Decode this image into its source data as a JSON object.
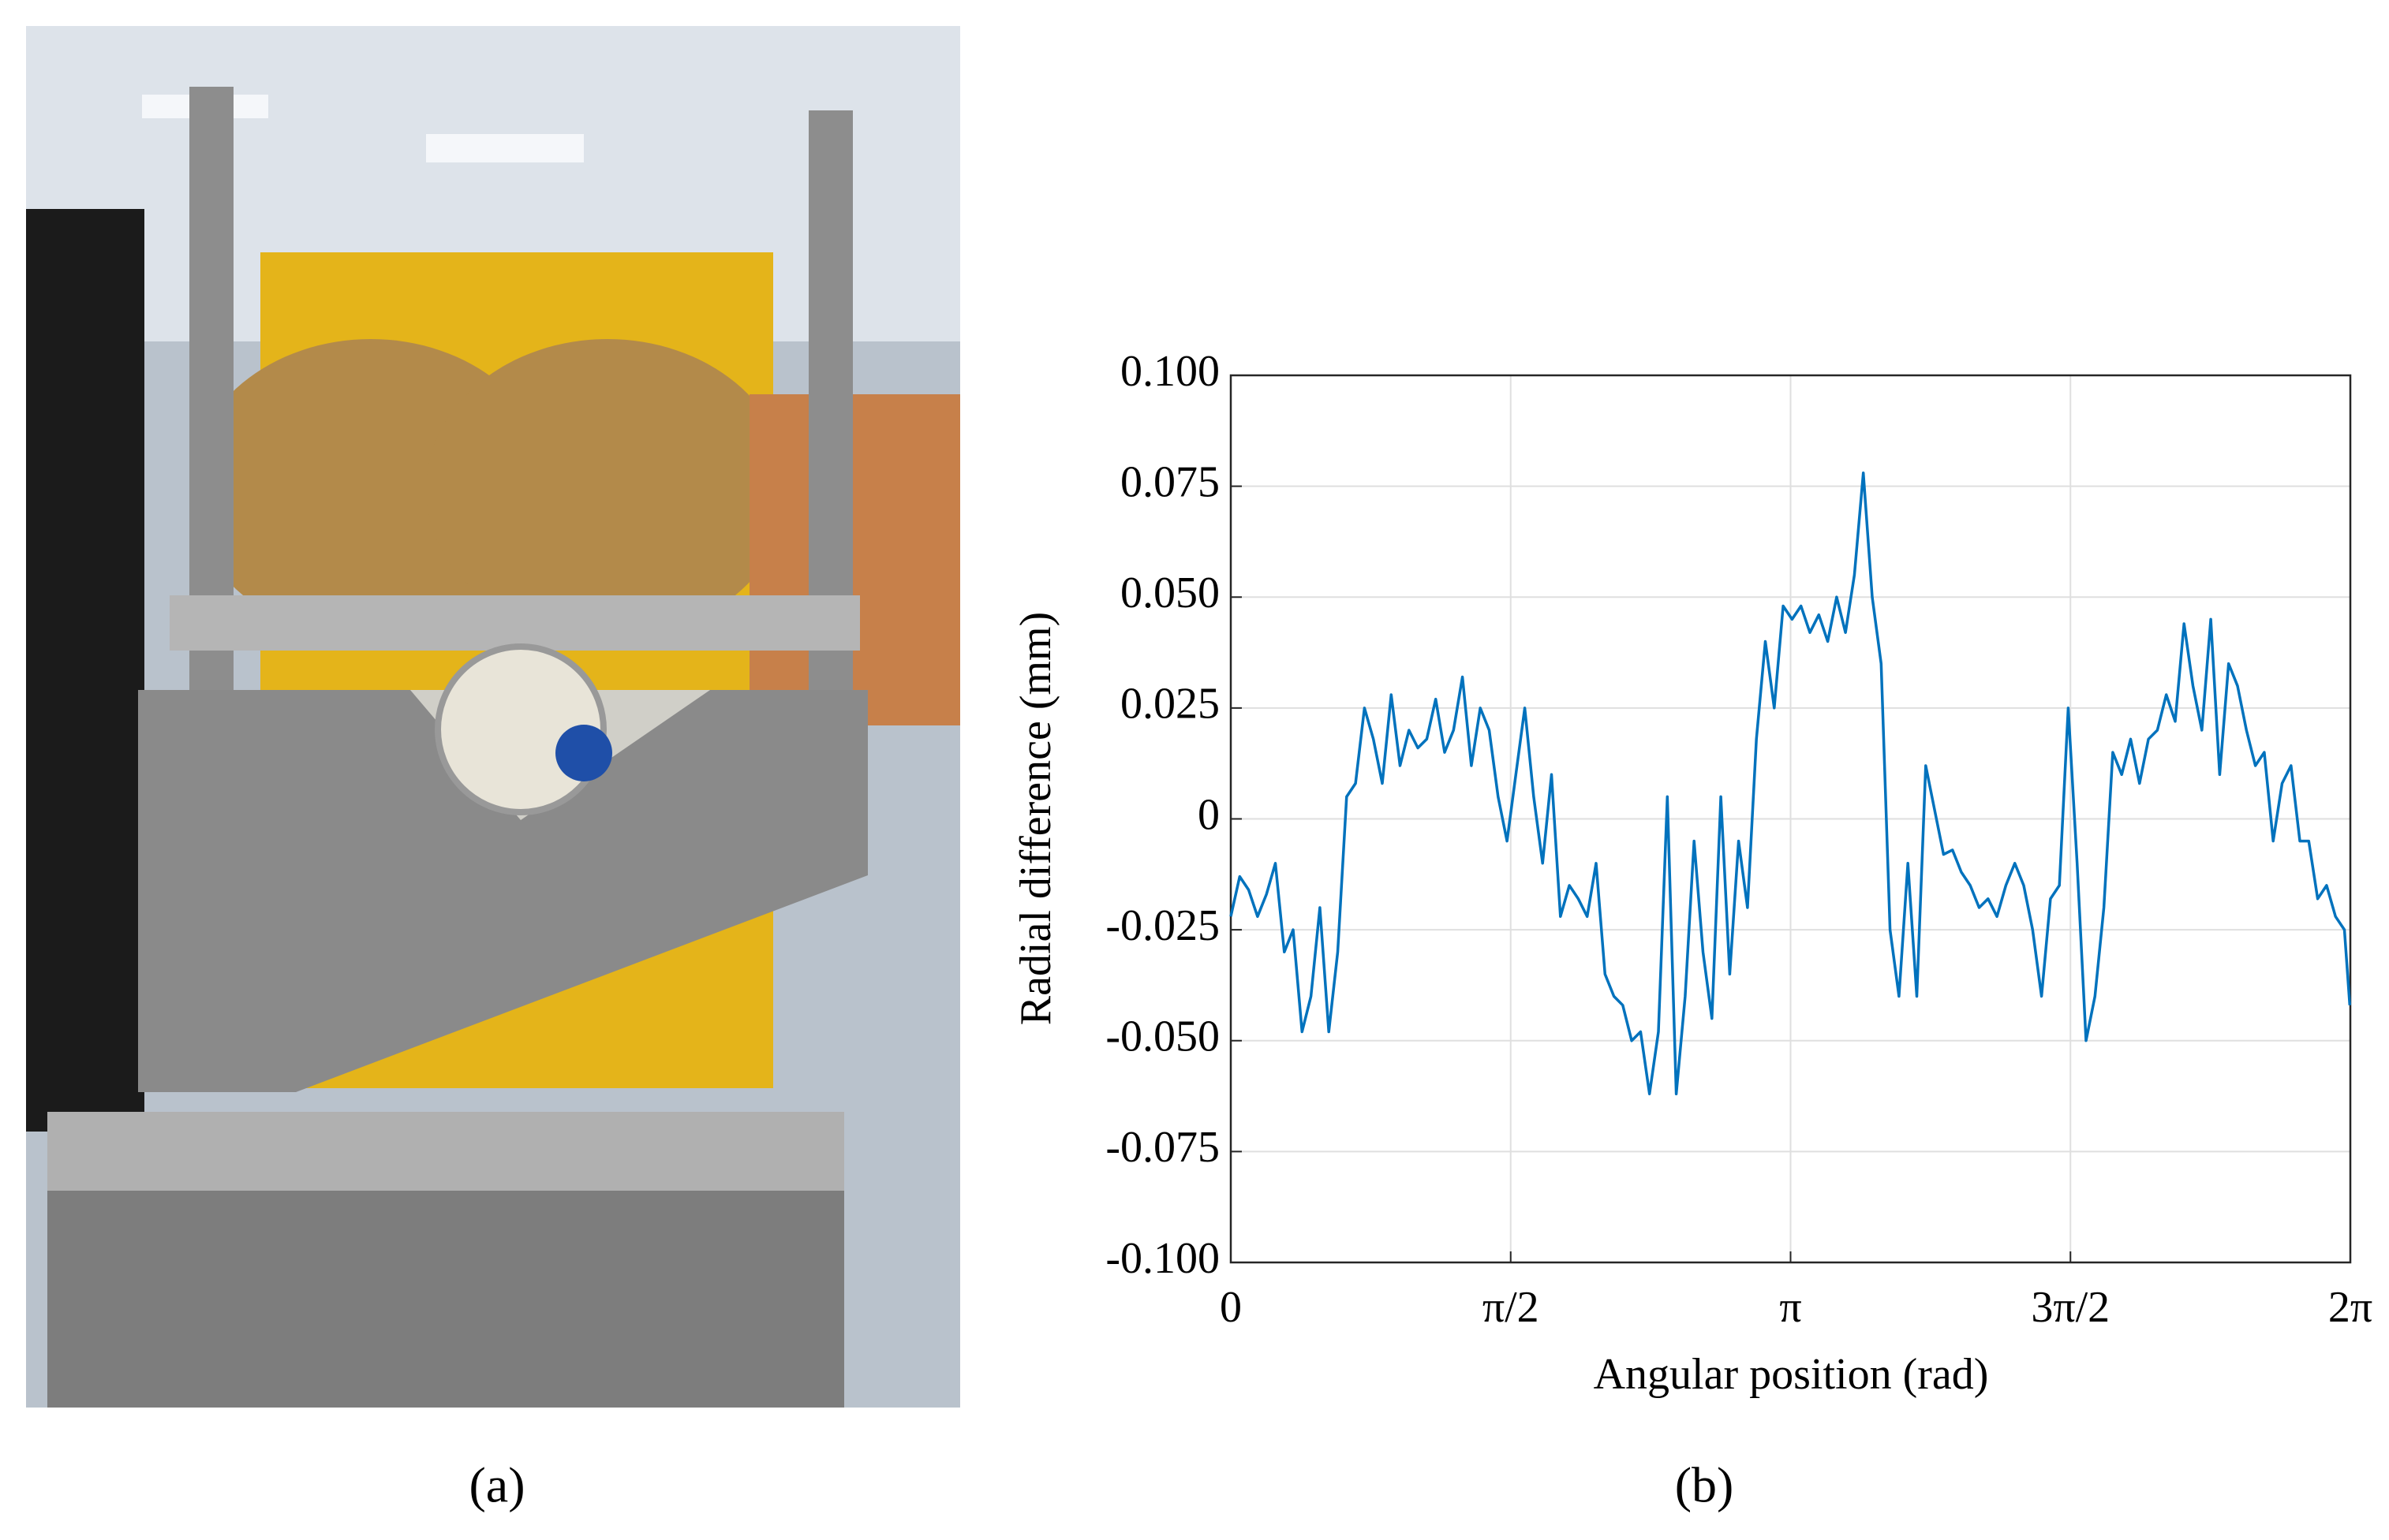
{
  "captions": [
    "(a)",
    "(b)"
  ],
  "chart_data": {
    "type": "line",
    "xlabel": "Angular position (rad)",
    "ylabel": "Radial difference (mm)",
    "x": [
      0,
      0.05,
      0.1,
      0.15,
      0.2,
      0.25,
      0.3,
      0.35,
      0.4,
      0.45,
      0.5,
      0.55,
      0.6,
      0.65,
      0.7,
      0.75,
      0.8,
      0.85,
      0.9,
      0.95,
      1.0,
      1.05,
      1.1,
      1.15,
      1.2,
      1.25,
      1.3,
      1.35,
      1.4,
      1.45,
      1.5,
      1.55,
      1.6,
      1.65,
      1.7,
      1.75,
      1.8,
      1.85,
      1.9,
      1.95,
      2.0,
      2.05,
      2.1,
      2.15,
      2.2,
      2.25,
      2.3,
      2.35,
      2.4,
      2.45,
      2.5,
      2.55,
      2.6,
      2.65,
      2.7,
      2.75,
      2.8,
      2.85,
      2.9,
      2.95,
      3.0,
      3.05,
      3.1,
      3.15,
      3.2,
      3.25,
      3.3,
      3.35,
      3.4,
      3.45,
      3.5,
      3.55,
      3.6,
      3.65,
      3.7,
      3.75,
      3.8,
      3.85,
      3.9,
      3.95,
      4.0,
      4.05,
      4.1,
      4.15,
      4.2,
      4.25,
      4.3,
      4.35,
      4.4,
      4.45,
      4.5,
      4.55,
      4.6,
      4.65,
      4.7,
      4.75,
      4.8,
      4.85,
      4.9,
      4.95,
      5.0,
      5.05,
      5.1,
      5.15,
      5.2,
      5.25,
      5.3,
      5.35,
      5.4,
      5.45,
      5.5,
      5.55,
      5.6,
      5.65,
      5.7,
      5.75,
      5.8,
      5.85,
      5.9,
      5.95,
      6.0,
      6.05,
      6.1,
      6.15,
      6.2,
      6.25,
      6.28
    ],
    "values": [
      -0.022,
      -0.013,
      -0.016,
      -0.022,
      -0.017,
      -0.01,
      -0.03,
      -0.025,
      -0.048,
      -0.04,
      -0.02,
      -0.048,
      -0.03,
      0.005,
      0.008,
      0.025,
      0.018,
      0.008,
      0.028,
      0.012,
      0.02,
      0.016,
      0.018,
      0.027,
      0.015,
      0.02,
      0.032,
      0.012,
      0.025,
      0.02,
      0.005,
      -0.005,
      0.01,
      0.025,
      0.005,
      -0.01,
      0.01,
      -0.022,
      -0.015,
      -0.018,
      -0.022,
      -0.01,
      -0.035,
      -0.04,
      -0.042,
      -0.05,
      -0.048,
      -0.062,
      -0.048,
      0.005,
      -0.062,
      -0.04,
      -0.005,
      -0.03,
      -0.045,
      0.005,
      -0.035,
      -0.005,
      -0.02,
      0.018,
      0.04,
      0.025,
      0.048,
      0.045,
      0.048,
      0.042,
      0.046,
      0.04,
      0.05,
      0.042,
      0.055,
      0.078,
      0.05,
      0.035,
      -0.025,
      -0.04,
      -0.01,
      -0.04,
      0.012,
      0.002,
      -0.008,
      -0.007,
      -0.012,
      -0.015,
      -0.02,
      -0.018,
      -0.022,
      -0.015,
      -0.01,
      -0.015,
      -0.025,
      -0.04,
      -0.018,
      -0.015,
      0.025,
      -0.01,
      -0.05,
      -0.04,
      -0.02,
      0.015,
      0.01,
      0.018,
      0.008,
      0.018,
      0.02,
      0.028,
      0.022,
      0.044,
      0.03,
      0.02,
      0.045,
      0.01,
      0.035,
      0.03,
      0.02,
      0.012,
      0.015,
      -0.005,
      0.008,
      0.012,
      -0.005,
      -0.005,
      -0.018,
      -0.015,
      -0.022,
      -0.025,
      -0.042
    ],
    "color": "#0072bd",
    "xlim": [
      0,
      6.2832
    ],
    "xticks": [
      0,
      {
        "value": 1.5708,
        "label": "π/2"
      },
      {
        "value": 3.1416,
        "label": "π"
      },
      {
        "value": 4.7124,
        "label": "3π/2"
      },
      {
        "value": 6.2832,
        "label": "2π"
      }
    ],
    "ylim": [
      -0.1,
      0.1
    ],
    "yticks": [
      {
        "value": -0.1,
        "label": "-0.100"
      },
      {
        "value": -0.075,
        "label": "-0.075"
      },
      {
        "value": -0.05,
        "label": "-0.050"
      },
      {
        "value": -0.025,
        "label": "-0.025"
      },
      0,
      {
        "value": 0.025,
        "label": "0.025"
      },
      {
        "value": 0.05,
        "label": "0.050"
      },
      {
        "value": 0.075,
        "label": "0.075"
      },
      {
        "value": 0.1,
        "label": "0.100"
      }
    ],
    "grid": true
  }
}
